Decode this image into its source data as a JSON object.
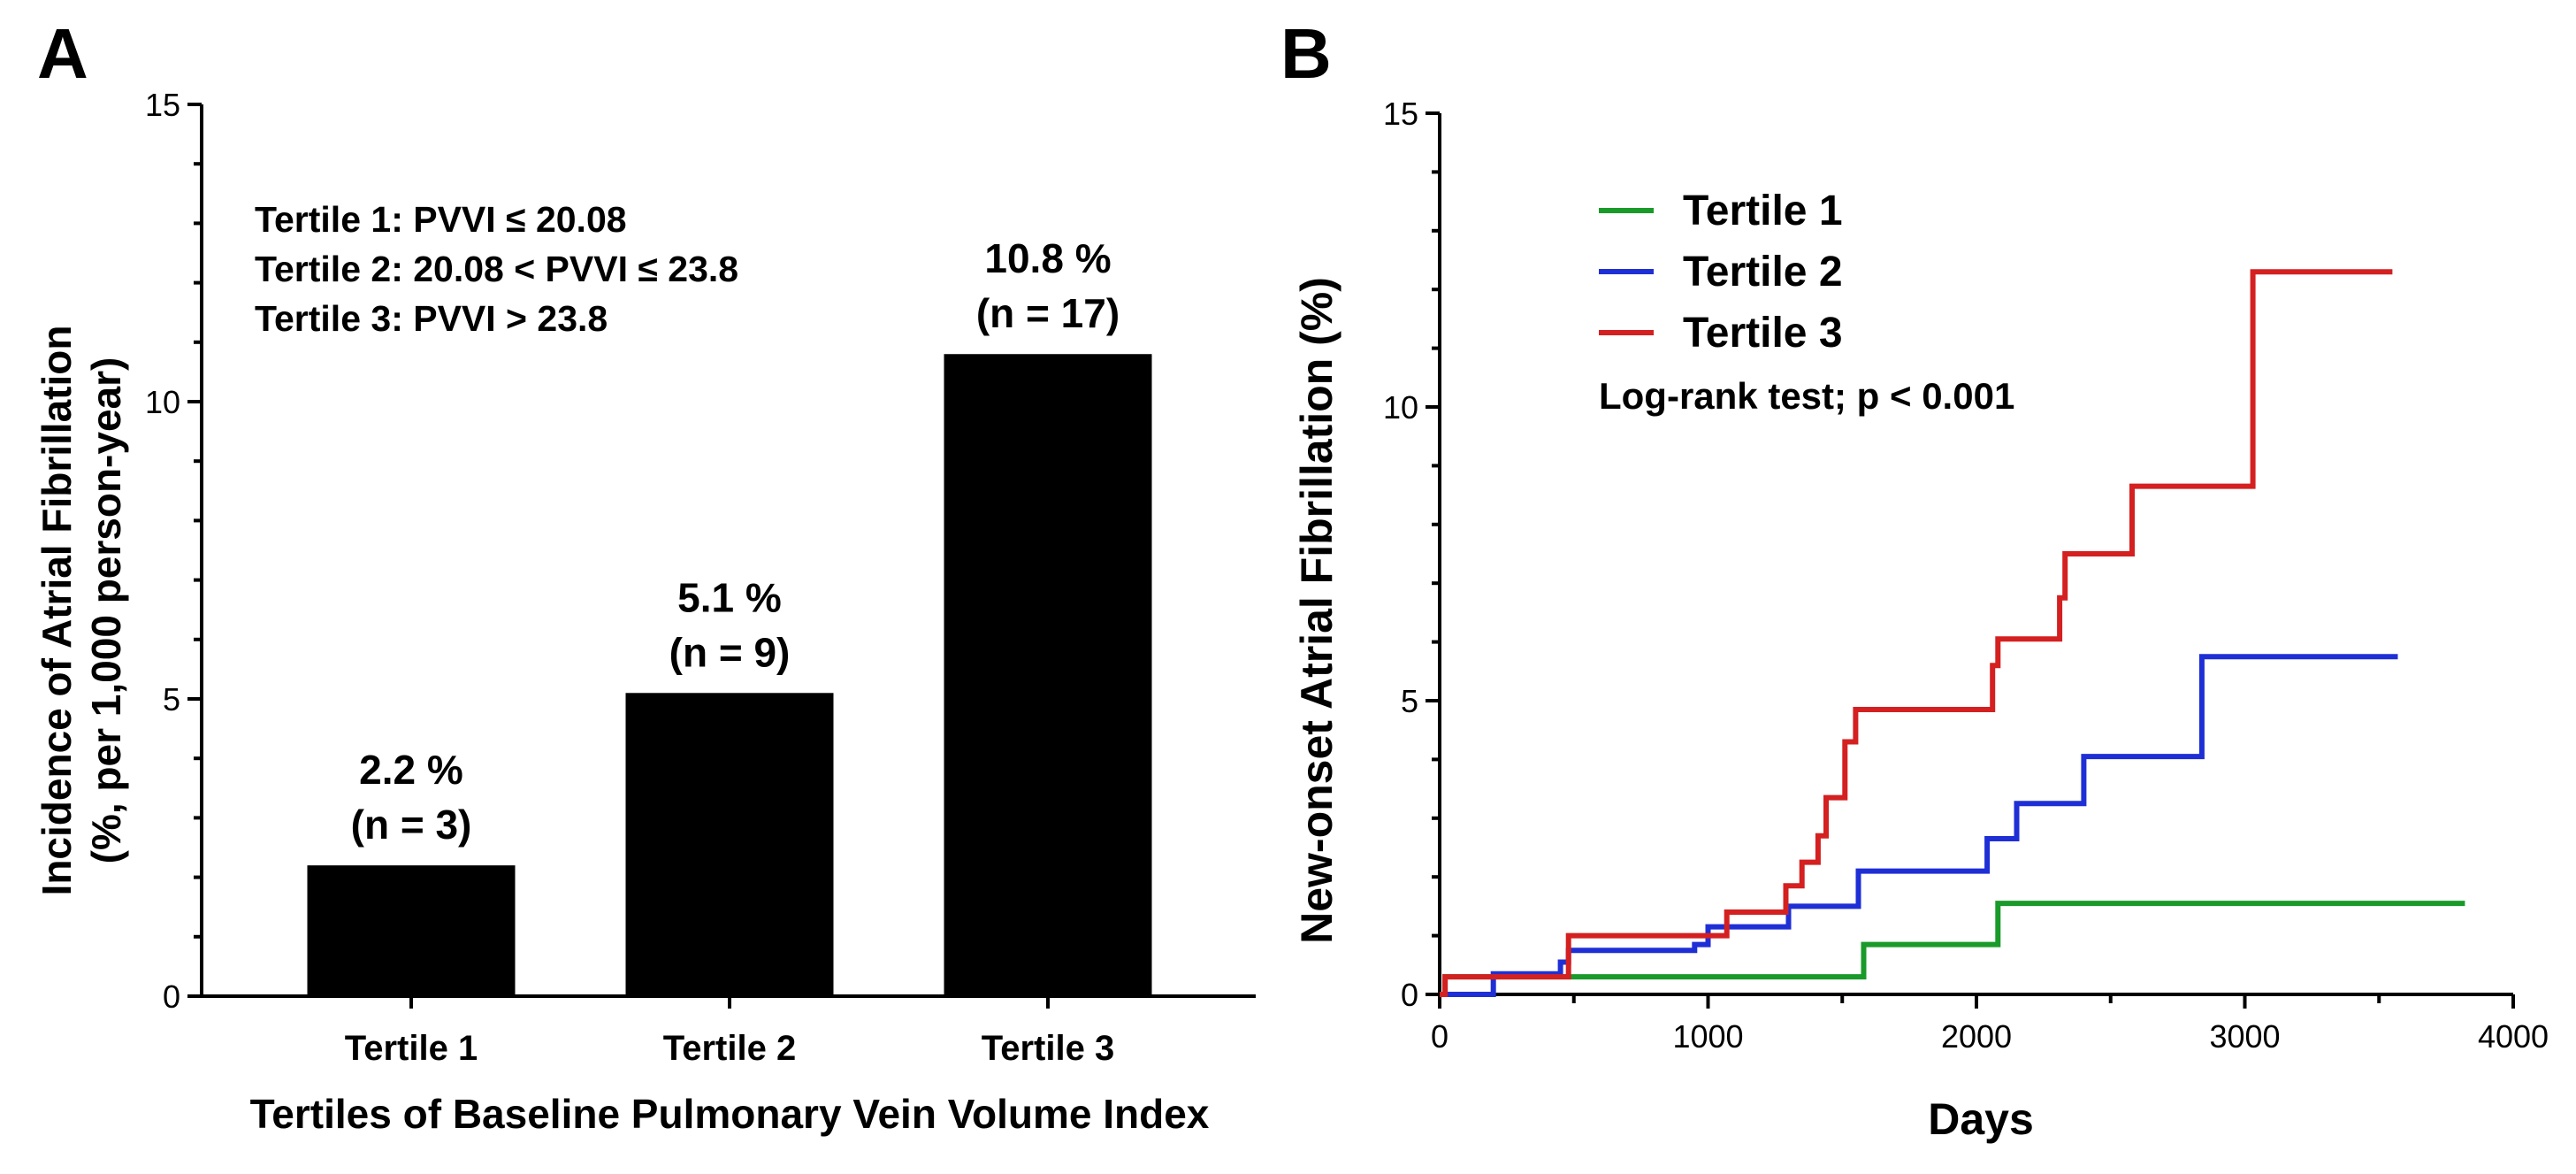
{
  "chart_data": [
    {
      "panel": "A",
      "type": "bar",
      "categories": [
        "Tertile 1",
        "Tertile 2",
        "Tertile 3"
      ],
      "values": [
        2.2,
        5.1,
        10.8
      ],
      "bar_labels": [
        {
          "pct": "2.2 %",
          "n": "(n = 3)"
        },
        {
          "pct": "5.1 %",
          "n": "(n = 9)"
        },
        {
          "pct": "10.8 %",
          "n": "(n = 17)"
        }
      ],
      "ylim": [
        0,
        15
      ],
      "yticks": [
        0,
        5,
        10,
        15
      ],
      "ylabel_line1": "Incidence of Atrial Fibrillation",
      "ylabel_line2": "(%, per 1,000 person-year)",
      "xlabel": "Tertiles of Baseline Pulmonary Vein Volume Index",
      "annotations": [
        "Tertile 1: PVVI ≤ 20.08",
        "Tertile 2: 20.08 < PVVI ≤ 23.8",
        "Tertile 3: PVVI > 23.8"
      ],
      "bar_color": "#000000"
    },
    {
      "panel": "B",
      "type": "line",
      "step": true,
      "xlim": [
        0,
        4000
      ],
      "ylim": [
        0,
        15
      ],
      "xticks": [
        0,
        1000,
        2000,
        3000,
        4000
      ],
      "yticks": [
        0,
        5,
        10,
        15
      ],
      "xlabel": "Days",
      "ylabel": "New-onset Atrial Fibrillation (%)",
      "annotation": "Log-rank test; p < 0.001",
      "series": [
        {
          "name": "Tertile 1",
          "color": "#1a9a2a",
          "x": [
            0,
            20,
            1580,
            2080,
            3820
          ],
          "y": [
            0,
            0.3,
            0.85,
            1.55,
            1.55
          ]
        },
        {
          "name": "Tertile 2",
          "color": "#1f2fd6",
          "x": [
            0,
            200,
            450,
            480,
            950,
            1000,
            1300,
            1560,
            2040,
            2150,
            2400,
            2840,
            3570
          ],
          "y": [
            0,
            0.35,
            0.55,
            0.75,
            0.85,
            1.15,
            1.5,
            2.1,
            2.65,
            3.25,
            4.05,
            5.75,
            5.75
          ],
          "x_end": 3570
        },
        {
          "name": "Tertile 3",
          "color": "#d42020",
          "x": [
            0,
            20,
            480,
            1070,
            1290,
            1350,
            1410,
            1440,
            1510,
            1550,
            2060,
            2080,
            2310,
            2330,
            2580,
            3030,
            3550
          ],
          "y": [
            0,
            0.3,
            1.0,
            1.4,
            1.85,
            2.25,
            2.7,
            3.35,
            4.3,
            4.85,
            5.6,
            6.05,
            6.75,
            7.5,
            8.65,
            12.3,
            12.3
          ]
        }
      ]
    }
  ],
  "panel_letters": {
    "a": "A",
    "b": "B"
  }
}
